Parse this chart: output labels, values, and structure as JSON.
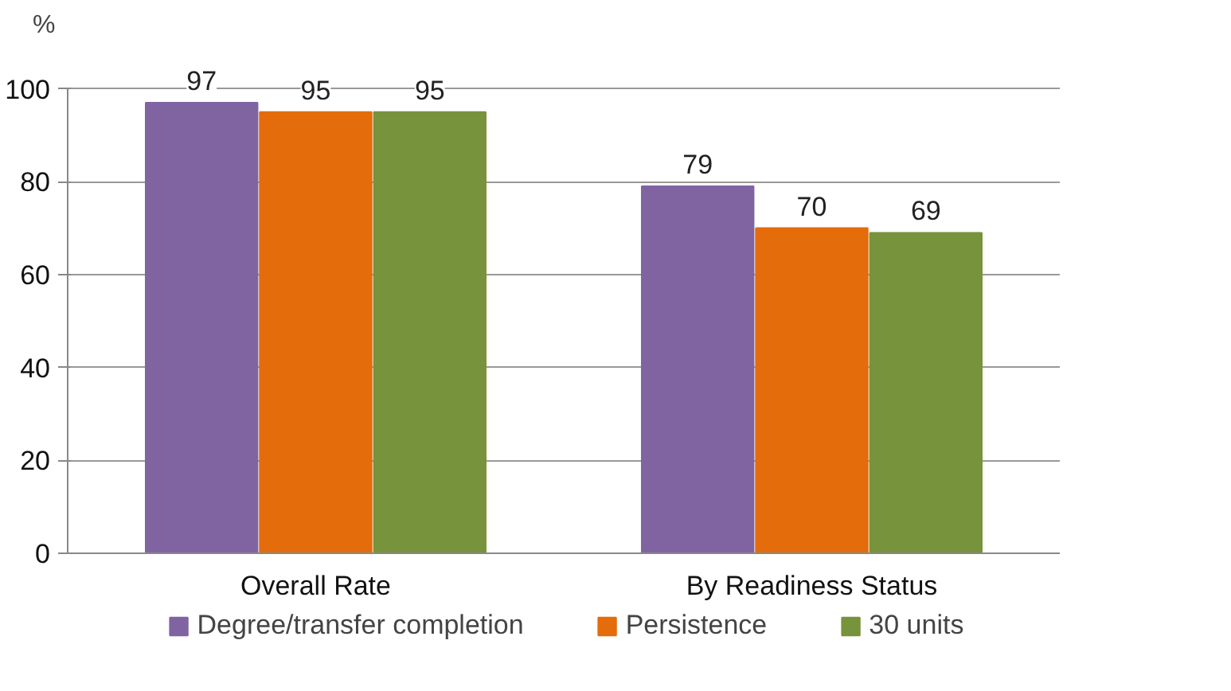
{
  "chart_data": {
    "type": "bar",
    "ylabel": "%",
    "categories": [
      "Overall Rate",
      "By Readiness Status"
    ],
    "series": [
      {
        "name": "Degree/transfer completion",
        "color": "#8064a2",
        "values": [
          97,
          79
        ]
      },
      {
        "name": "Persistence",
        "color": "#e46c0a",
        "values": [
          95,
          70
        ]
      },
      {
        "name": "30 units",
        "color": "#77933c",
        "values": [
          95,
          69
        ]
      }
    ],
    "ylim": [
      0,
      100
    ],
    "yticks": [
      0,
      20,
      40,
      60,
      80,
      100
    ],
    "grid": "y",
    "legend": "bottom",
    "data_labels": true
  }
}
